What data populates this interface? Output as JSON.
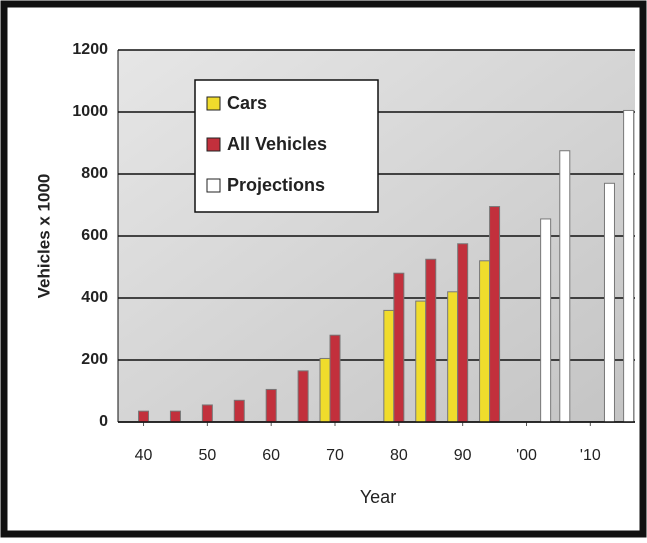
{
  "chart_data": {
    "type": "bar",
    "x_label": "Year",
    "y_label": "Vehicles x 1000",
    "xlim": [
      1936,
      2017
    ],
    "xticks": [
      {
        "value": 1940,
        "label": "40"
      },
      {
        "value": 1950,
        "label": "50"
      },
      {
        "value": 1960,
        "label": "60"
      },
      {
        "value": 1970,
        "label": "70"
      },
      {
        "value": 1980,
        "label": "80"
      },
      {
        "value": 1990,
        "label": "90"
      },
      {
        "value": 2000,
        "label": "'00"
      },
      {
        "value": 2010,
        "label": "'10"
      }
    ],
    "ylim": [
      0,
      1200
    ],
    "yticks": [
      0,
      200,
      400,
      600,
      800,
      1000,
      1200
    ],
    "grid": true,
    "legend": "upper left",
    "series": [
      {
        "name": "Cars",
        "color": "#f0dc2c",
        "x": [
          1970,
          1980,
          1985,
          1990,
          1995
        ],
        "values": [
          205,
          360,
          390,
          420,
          520
        ]
      },
      {
        "name": "All Vehicles",
        "color": "#c2303c",
        "x": [
          1940,
          1945,
          1950,
          1955,
          1960,
          1965,
          1970,
          1980,
          1985,
          1990,
          1995
        ],
        "values": [
          35,
          35,
          55,
          70,
          105,
          165,
          280,
          480,
          525,
          575,
          695
        ]
      },
      {
        "name": "Projections",
        "color": "#ffffff",
        "x": [
          2003,
          2006,
          2013,
          2016
        ],
        "values": [
          655,
          875,
          770,
          1005
        ]
      }
    ]
  }
}
